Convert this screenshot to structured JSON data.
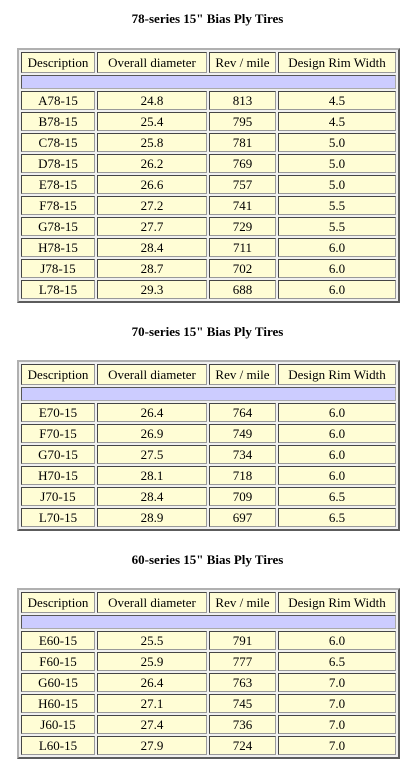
{
  "headers": [
    "Description",
    "Overall diameter",
    "Rev / mile",
    "Design Rim Width"
  ],
  "tables": [
    {
      "title": "78-series 15\" Bias Ply Tires",
      "rows": [
        [
          "A78-15",
          "24.8",
          "813",
          "4.5"
        ],
        [
          "B78-15",
          "25.4",
          "795",
          "4.5"
        ],
        [
          "C78-15",
          "25.8",
          "781",
          "5.0"
        ],
        [
          "D78-15",
          "26.2",
          "769",
          "5.0"
        ],
        [
          "E78-15",
          "26.6",
          "757",
          "5.0"
        ],
        [
          "F78-15",
          "27.2",
          "741",
          "5.5"
        ],
        [
          "G78-15",
          "27.7",
          "729",
          "5.5"
        ],
        [
          "H78-15",
          "28.4",
          "711",
          "6.0"
        ],
        [
          "J78-15",
          "28.7",
          "702",
          "6.0"
        ],
        [
          "L78-15",
          "29.3",
          "688",
          "6.0"
        ]
      ]
    },
    {
      "title": "70-series 15\" Bias Ply Tires",
      "rows": [
        [
          "E70-15",
          "26.4",
          "764",
          "6.0"
        ],
        [
          "F70-15",
          "26.9",
          "749",
          "6.0"
        ],
        [
          "G70-15",
          "27.5",
          "734",
          "6.0"
        ],
        [
          "H70-15",
          "28.1",
          "718",
          "6.0"
        ],
        [
          "J70-15",
          "28.4",
          "709",
          "6.5"
        ],
        [
          "L70-15",
          "28.9",
          "697",
          "6.5"
        ]
      ]
    },
    {
      "title": "60-series 15\" Bias Ply Tires",
      "rows": [
        [
          "E60-15",
          "25.5",
          "791",
          "6.0"
        ],
        [
          "F60-15",
          "25.9",
          "777",
          "6.5"
        ],
        [
          "G60-15",
          "26.4",
          "763",
          "7.0"
        ],
        [
          "H60-15",
          "27.1",
          "745",
          "7.0"
        ],
        [
          "J60-15",
          "27.4",
          "736",
          "7.0"
        ],
        [
          "L60-15",
          "27.9",
          "724",
          "7.0"
        ]
      ]
    }
  ]
}
